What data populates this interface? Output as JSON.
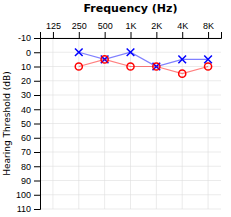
{
  "chart_data": {
    "type": "line",
    "title": "Frequency (Hz)",
    "y_label": "Hearing Threshold (dB)",
    "categories": [
      "125",
      "250",
      "500",
      "1K",
      "2K",
      "4K",
      "8K"
    ],
    "series": [
      {
        "color": "#0000ff",
        "marker": "x",
        "values": [
          null,
          0,
          5,
          0,
          10,
          5,
          5
        ]
      },
      {
        "color": "#ff0000",
        "marker": "o",
        "values": [
          null,
          10,
          5,
          10,
          10,
          15,
          10
        ]
      }
    ],
    "ylim": [
      110,
      -10
    ],
    "yticks": [
      -10,
      0,
      10,
      20,
      30,
      40,
      50,
      60,
      70,
      80,
      90,
      100,
      110
    ],
    "grid": true
  }
}
